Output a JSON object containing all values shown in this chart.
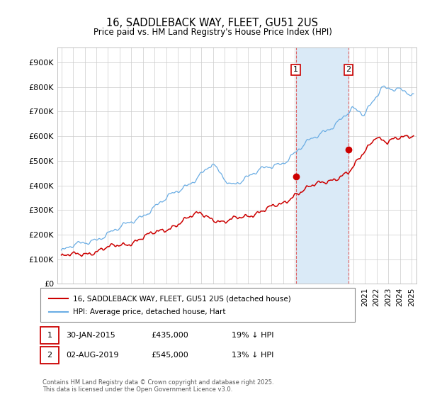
{
  "title": "16, SADDLEBACK WAY, FLEET, GU51 2US",
  "subtitle": "Price paid vs. HM Land Registry's House Price Index (HPI)",
  "hpi_color": "#6aade4",
  "price_color": "#cc0000",
  "highlight_color": "#daeaf7",
  "vline_color": "#e06060",
  "purchase1_date_str": "2015-01-30",
  "purchase1_price": 435000,
  "purchase2_date_str": "2019-08-02",
  "purchase2_price": 545000,
  "purchase1_label": "30-JAN-2015",
  "purchase1_amt": "£435,000",
  "purchase1_pct": "19% ↓ HPI",
  "purchase2_label": "02-AUG-2019",
  "purchase2_amt": "£545,000",
  "purchase2_pct": "13% ↓ HPI",
  "legend_line1": "16, SADDLEBACK WAY, FLEET, GU51 2US (detached house)",
  "legend_line2": "HPI: Average price, detached house, Hart",
  "footer": "Contains HM Land Registry data © Crown copyright and database right 2025.\nThis data is licensed under the Open Government Licence v3.0.",
  "yticks": [
    0,
    100000,
    200000,
    300000,
    400000,
    500000,
    600000,
    700000,
    800000,
    900000
  ],
  "ylim": [
    0,
    960000
  ],
  "background_color": "#ffffff",
  "grid_color": "#cccccc"
}
